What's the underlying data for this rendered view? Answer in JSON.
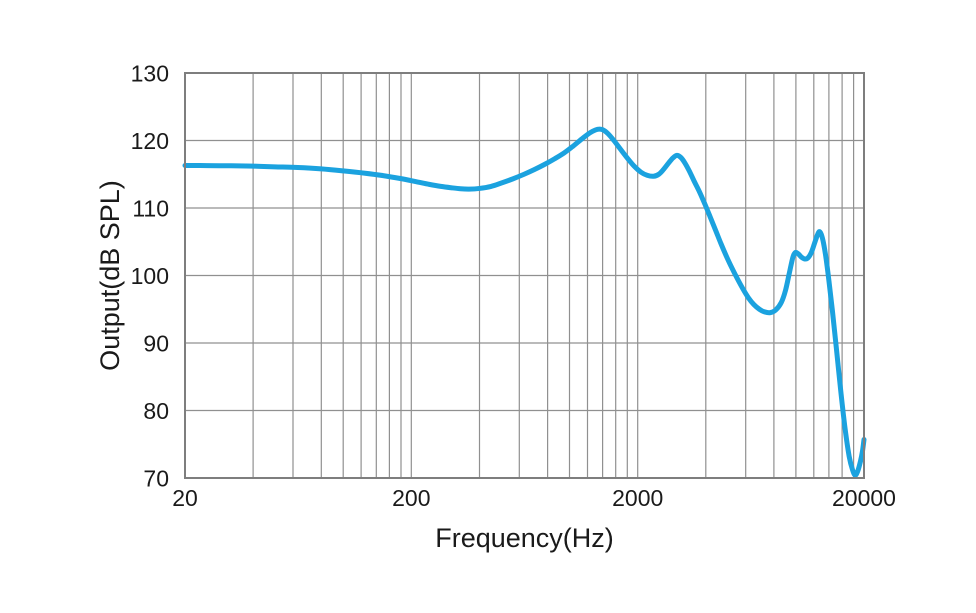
{
  "chart_data": {
    "type": "line",
    "title": "",
    "xlabel": "Frequency(Hz)",
    "ylabel": "Output(dB SPL)",
    "x_scale": "log",
    "x_range": [
      20,
      20000
    ],
    "y_range": [
      70,
      130
    ],
    "grid": true,
    "legend": "none",
    "x_tick_values": [
      20,
      200,
      2000,
      20000
    ],
    "x_tick_labels": [
      "20",
      "200",
      "2000",
      "20000"
    ],
    "x_minor_grid_multipliers": [
      2,
      3,
      4,
      5,
      6,
      7,
      8,
      9
    ],
    "y_tick_values": [
      70,
      80,
      90,
      100,
      110,
      120,
      130
    ],
    "y_tick_labels": [
      "70",
      "80",
      "90",
      "100",
      "110",
      "120",
      "130"
    ],
    "series": [
      {
        "name": "frequency-response",
        "points": [
          [
            20,
            116.3
          ],
          [
            25,
            116.28
          ],
          [
            32,
            116.25
          ],
          [
            40,
            116.2
          ],
          [
            50,
            116.1
          ],
          [
            63,
            116.0
          ],
          [
            80,
            115.8
          ],
          [
            100,
            115.5
          ],
          [
            125,
            115.15
          ],
          [
            150,
            114.8
          ],
          [
            180,
            114.35
          ],
          [
            210,
            113.9
          ],
          [
            240,
            113.5
          ],
          [
            270,
            113.2
          ],
          [
            300,
            113.0
          ],
          [
            330,
            112.85
          ],
          [
            360,
            112.8
          ],
          [
            400,
            112.9
          ],
          [
            450,
            113.2
          ],
          [
            500,
            113.7
          ],
          [
            560,
            114.3
          ],
          [
            630,
            115.0
          ],
          [
            700,
            115.7
          ],
          [
            780,
            116.5
          ],
          [
            860,
            117.3
          ],
          [
            950,
            118.2
          ],
          [
            1040,
            119.2
          ],
          [
            1140,
            120.3
          ],
          [
            1240,
            121.2
          ],
          [
            1330,
            121.65
          ],
          [
            1400,
            121.6
          ],
          [
            1480,
            121.0
          ],
          [
            1570,
            120.0
          ],
          [
            1680,
            118.7
          ],
          [
            1800,
            117.4
          ],
          [
            1930,
            116.2
          ],
          [
            2070,
            115.3
          ],
          [
            2200,
            114.85
          ],
          [
            2350,
            114.7
          ],
          [
            2480,
            115.0
          ],
          [
            2600,
            115.7
          ],
          [
            2730,
            116.6
          ],
          [
            2860,
            117.4
          ],
          [
            2980,
            117.8
          ],
          [
            3100,
            117.5
          ],
          [
            3230,
            116.7
          ],
          [
            3380,
            115.5
          ],
          [
            3550,
            114.0
          ],
          [
            3750,
            112.4
          ],
          [
            3960,
            110.6
          ],
          [
            4180,
            108.7
          ],
          [
            4420,
            106.7
          ],
          [
            4670,
            104.7
          ],
          [
            4940,
            102.8
          ],
          [
            5220,
            101.1
          ],
          [
            5520,
            99.5
          ],
          [
            5840,
            98.0
          ],
          [
            6170,
            96.7
          ],
          [
            6520,
            95.7
          ],
          [
            6900,
            95.0
          ],
          [
            7290,
            94.6
          ],
          [
            7710,
            94.5
          ],
          [
            8150,
            94.9
          ],
          [
            8620,
            96.0
          ],
          [
            9000,
            97.8
          ],
          [
            9350,
            100.3
          ],
          [
            9700,
            102.7
          ],
          [
            9950,
            103.4
          ],
          [
            10250,
            103.2
          ],
          [
            10600,
            102.7
          ],
          [
            10950,
            102.45
          ],
          [
            11300,
            102.6
          ],
          [
            11700,
            103.4
          ],
          [
            12100,
            104.8
          ],
          [
            12450,
            106.0
          ],
          [
            12700,
            106.5
          ],
          [
            12950,
            106.1
          ],
          [
            13250,
            104.8
          ],
          [
            13600,
            102.5
          ],
          [
            14000,
            99.2
          ],
          [
            14500,
            94.8
          ],
          [
            15100,
            89.2
          ],
          [
            15800,
            82.8
          ],
          [
            16500,
            77.3
          ],
          [
            17200,
            73.2
          ],
          [
            17800,
            71.2
          ],
          [
            18300,
            70.4
          ],
          [
            18800,
            71.1
          ],
          [
            19300,
            72.5
          ],
          [
            19700,
            74.0
          ],
          [
            20000,
            75.7
          ]
        ]
      }
    ]
  },
  "colors": {
    "background": "#FFFFFF",
    "curve": "#1BA2DF",
    "grid": "#909090",
    "border": "#7E7E7E",
    "text": "#1A1A1A"
  }
}
